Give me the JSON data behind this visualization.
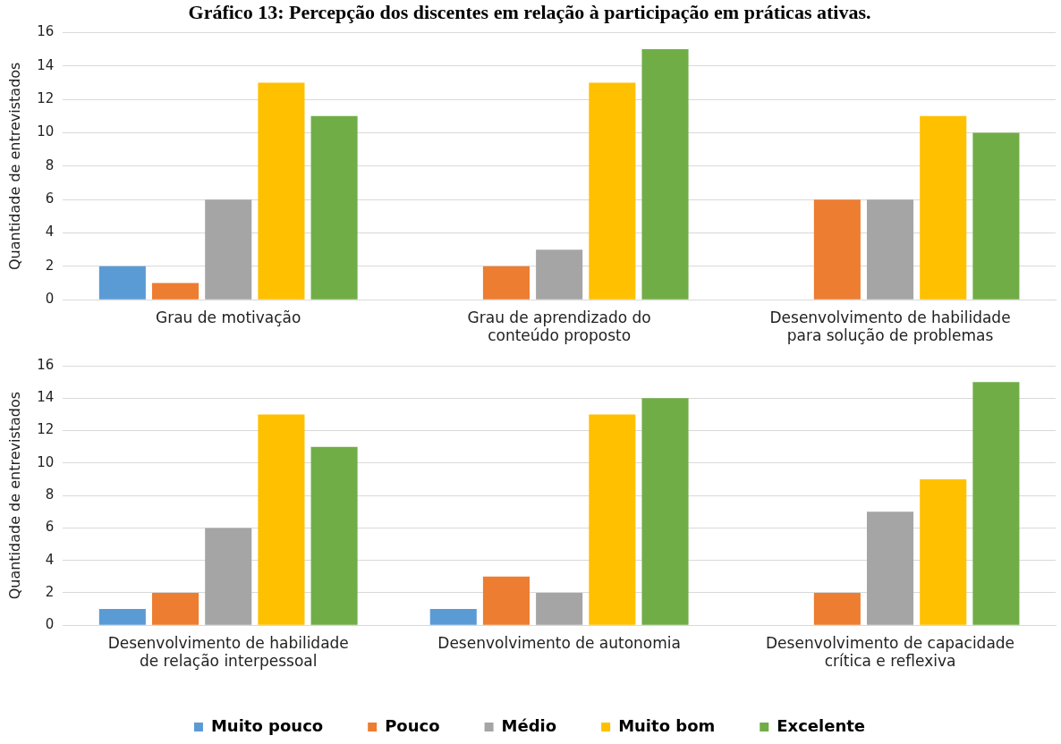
{
  "chart_data": [
    {
      "type": "bar",
      "title": "Gráfico 13: Percepção dos discentes em relação à participação em práticas ativas.",
      "ylabel": "Quantidade de entrevistados",
      "categories": [
        "Grau de motivação",
        "Grau de aprendizado do conteúdo proposto",
        "Desenvolvimento de habilidade para solução de problemas"
      ],
      "series": [
        {
          "color": "#5b9bd5",
          "values": [
            2,
            null,
            null
          ]
        },
        {
          "color": "#ed7d31",
          "values": [
            1,
            2,
            6
          ]
        },
        {
          "color": "#a5a5a5",
          "values": [
            6,
            3,
            6
          ]
        },
        {
          "color": "#ffc000",
          "values": [
            13,
            13,
            11
          ]
        },
        {
          "color": "#70ad47",
          "values": [
            11,
            15,
            10
          ]
        }
      ],
      "ylim": [
        0,
        16
      ],
      "yticks": [
        0,
        2,
        4,
        6,
        8,
        10,
        12,
        14,
        16
      ],
      "grid": "y",
      "legend": false
    },
    {
      "type": "bar",
      "ylabel": "Quantidade de entrevistados",
      "categories": [
        "Desenvolvimento de habilidade de relação interpessoal",
        "Desenvolvimento de autonomia",
        "Desenvolvimento de capacidade crítica e reflexiva"
      ],
      "series": [
        {
          "name": "Muito pouco",
          "color": "#5b9bd5",
          "values": [
            1,
            1,
            null
          ]
        },
        {
          "name": "Pouco",
          "color": "#ed7d31",
          "values": [
            2,
            3,
            2
          ]
        },
        {
          "name": "Médio",
          "color": "#a5a5a5",
          "values": [
            6,
            2,
            7
          ]
        },
        {
          "name": "Muito bom",
          "color": "#ffc000",
          "values": [
            13,
            13,
            9
          ]
        },
        {
          "name": "Excelente",
          "color": "#70ad47",
          "values": [
            11,
            14,
            15
          ]
        }
      ],
      "ylim": [
        0,
        16
      ],
      "yticks": [
        0,
        2,
        4,
        6,
        8,
        10,
        12,
        14,
        16
      ],
      "grid": "y",
      "legend": "bottom"
    }
  ]
}
